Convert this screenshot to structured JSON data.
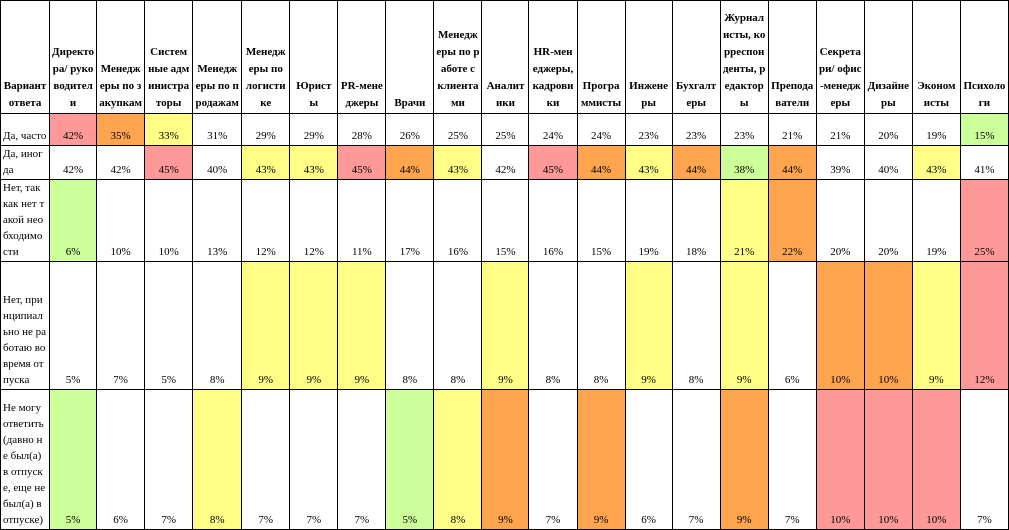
{
  "colors": {
    "red": "#ff9999",
    "orange": "#ffa54f",
    "yellow": "#ffff88",
    "green": "#ccff99",
    "white": "#ffffff",
    "border": "#000000"
  },
  "table": {
    "corner_header": "Вариант ответа",
    "columns": [
      "Директора/ руководители",
      "Менеджеры по закупкам",
      "Системные администраторы",
      "Менеджеры по продажам",
      "Менеджеры по логистике",
      "Юристы",
      "PR-менеджеры",
      "Врачи",
      "Менеджеры по работе с клиентами",
      "Аналитики",
      "HR-менеджеры, кадровики",
      "Программисты",
      "Инженеры",
      "Бухгалтеры",
      "Журналисты, корреспонденты, редакторы",
      "Преподаватели",
      "Секретари/ офис-менеджеры",
      "Дизайнеры",
      "Экономисты",
      "Психологи"
    ],
    "rows": [
      {
        "label": "Да, часто",
        "values": [
          "42%",
          "35%",
          "33%",
          "31%",
          "29%",
          "29%",
          "28%",
          "26%",
          "25%",
          "25%",
          "24%",
          "24%",
          "23%",
          "23%",
          "23%",
          "21%",
          "21%",
          "20%",
          "19%",
          "15%"
        ],
        "fills": [
          "red",
          "orange",
          "yellow",
          "white",
          "white",
          "white",
          "white",
          "white",
          "white",
          "white",
          "white",
          "white",
          "white",
          "white",
          "white",
          "white",
          "white",
          "white",
          "white",
          "green"
        ]
      },
      {
        "label": "Да, иногда",
        "values": [
          "42%",
          "42%",
          "45%",
          "40%",
          "43%",
          "43%",
          "45%",
          "44%",
          "43%",
          "42%",
          "45%",
          "44%",
          "43%",
          "44%",
          "38%",
          "44%",
          "39%",
          "40%",
          "43%",
          "41%"
        ],
        "fills": [
          "white",
          "white",
          "red",
          "white",
          "yellow",
          "yellow",
          "red",
          "orange",
          "yellow",
          "white",
          "red",
          "orange",
          "yellow",
          "orange",
          "green",
          "orange",
          "white",
          "white",
          "yellow",
          "white"
        ]
      },
      {
        "label": "Нет, так как нет такой необходимости",
        "values": [
          "6%",
          "10%",
          "10%",
          "13%",
          "12%",
          "12%",
          "11%",
          "17%",
          "16%",
          "15%",
          "16%",
          "15%",
          "19%",
          "18%",
          "21%",
          "22%",
          "20%",
          "20%",
          "19%",
          "25%"
        ],
        "fills": [
          "green",
          "white",
          "white",
          "white",
          "white",
          "white",
          "white",
          "white",
          "white",
          "white",
          "white",
          "white",
          "white",
          "white",
          "yellow",
          "orange",
          "white",
          "white",
          "white",
          "red"
        ]
      },
      {
        "label": "Нет, принципиально не работаю во время отпуска",
        "values": [
          "5%",
          "7%",
          "5%",
          "8%",
          "9%",
          "9%",
          "9%",
          "8%",
          "8%",
          "9%",
          "8%",
          "8%",
          "9%",
          "8%",
          "9%",
          "6%",
          "10%",
          "10%",
          "9%",
          "12%"
        ],
        "fills": [
          "white",
          "white",
          "white",
          "white",
          "yellow",
          "yellow",
          "yellow",
          "white",
          "white",
          "yellow",
          "white",
          "white",
          "yellow",
          "white",
          "yellow",
          "white",
          "orange",
          "orange",
          "yellow",
          "red"
        ]
      },
      {
        "label": "Не могу ответить (давно не был(а) в отпуске, еще не был(а) в отпуске)",
        "values": [
          "5%",
          "6%",
          "7%",
          "8%",
          "7%",
          "7%",
          "7%",
          "5%",
          "8%",
          "9%",
          "7%",
          "9%",
          "6%",
          "7%",
          "9%",
          "7%",
          "10%",
          "10%",
          "10%",
          "7%"
        ],
        "fills": [
          "green",
          "white",
          "white",
          "yellow",
          "white",
          "white",
          "white",
          "green",
          "yellow",
          "orange",
          "white",
          "orange",
          "white",
          "white",
          "orange",
          "white",
          "red",
          "red",
          "red",
          "white"
        ]
      }
    ]
  }
}
